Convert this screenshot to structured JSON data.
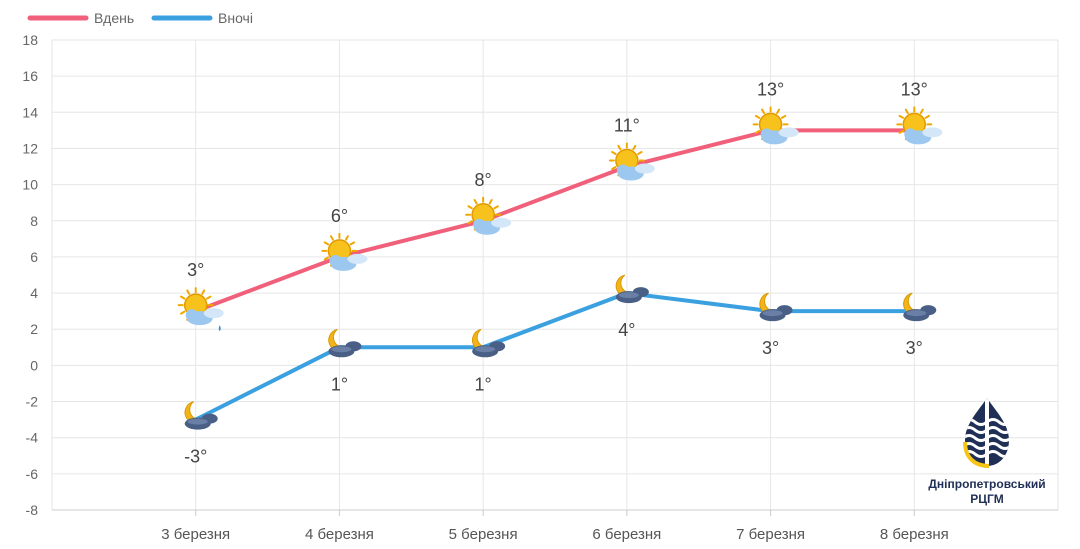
{
  "chart_data": {
    "type": "line",
    "categories": [
      "3 березня",
      "4 березня",
      "5 березня",
      "6 березня",
      "7 березня",
      "8 березня"
    ],
    "series": [
      {
        "name": "Вдень",
        "color": "#f0607a",
        "values": [
          3,
          6,
          8,
          11,
          13,
          13
        ],
        "labels": [
          "3°",
          "6°",
          "8°",
          "11°",
          "13°",
          "13°"
        ],
        "icons": [
          "sun-cloud-rain-icon",
          "sun-cloud-icon",
          "sun-cloud-icon",
          "sun-cloud-icon",
          "sun-cloud-icon",
          "sun-cloud-icon"
        ]
      },
      {
        "name": "Вночі",
        "color": "#3ba0e0",
        "values": [
          -3,
          1,
          1,
          4,
          3,
          3
        ],
        "labels": [
          "-3°",
          "1°",
          "1°",
          "4°",
          "3°",
          "3°"
        ],
        "icons": [
          "moon-cloud-icon",
          "moon-cloud-icon",
          "moon-cloud-icon",
          "moon-cloud-icon",
          "moon-cloud-icon",
          "moon-cloud-icon"
        ]
      }
    ],
    "ylim": [
      -8,
      18
    ],
    "yticks": [
      "18",
      "16",
      "14",
      "12",
      "10",
      "8",
      "6",
      "4",
      "2",
      "0",
      "-2",
      "-4",
      "-6",
      "-8"
    ],
    "grid": true,
    "legend": "top-left"
  },
  "logo": {
    "line1": "Дніпропетровський",
    "line2": "РЦГМ"
  }
}
